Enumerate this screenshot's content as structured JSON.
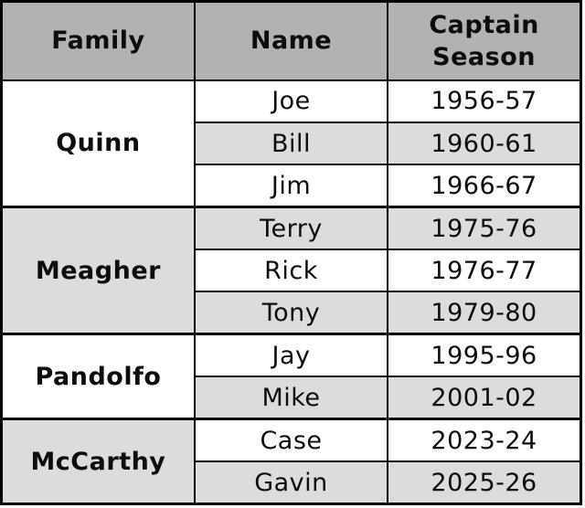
{
  "table": {
    "headers": {
      "family": "Family",
      "name": "Name",
      "season": "Captain Season"
    },
    "groups": [
      {
        "family": "Quinn",
        "members": [
          {
            "name": "Joe",
            "season": "1956-57"
          },
          {
            "name": "Bill",
            "season": "1960-61"
          },
          {
            "name": "Jim",
            "season": "1966-67"
          }
        ]
      },
      {
        "family": "Meagher",
        "members": [
          {
            "name": "Terry",
            "season": "1975-76"
          },
          {
            "name": "Rick",
            "season": "1976-77"
          },
          {
            "name": "Tony",
            "season": "1979-80"
          }
        ]
      },
      {
        "family": "Pandolfo",
        "members": [
          {
            "name": "Jay",
            "season": "1995-96"
          },
          {
            "name": "Mike",
            "season": "2001-02"
          }
        ]
      },
      {
        "family": "McCarthy",
        "members": [
          {
            "name": "Case",
            "season": "2023-24"
          },
          {
            "name": "Gavin",
            "season": "2025-26"
          }
        ]
      }
    ]
  },
  "chart_data": {
    "type": "table",
    "columns": [
      "Family",
      "Name",
      "Captain Season"
    ],
    "rows": [
      [
        "Quinn",
        "Joe",
        "1956-57"
      ],
      [
        "Quinn",
        "Bill",
        "1960-61"
      ],
      [
        "Quinn",
        "Jim",
        "1966-67"
      ],
      [
        "Meagher",
        "Terry",
        "1975-76"
      ],
      [
        "Meagher",
        "Rick",
        "1976-77"
      ],
      [
        "Meagher",
        "Tony",
        "1979-80"
      ],
      [
        "Pandolfo",
        "Jay",
        "1995-96"
      ],
      [
        "Pandolfo",
        "Mike",
        "2001-02"
      ],
      [
        "McCarthy",
        "Case",
        "2023-24"
      ],
      [
        "McCarthy",
        "Gavin",
        "2025-26"
      ]
    ],
    "layout": {
      "family_column_rowspan": true,
      "row_striping": "alternating white / light gray",
      "header_background": "#b2b2b2"
    }
  },
  "colors": {
    "header_bg": "#b2b2b2",
    "alt_row_bg": "#dcdcdc",
    "row_bg": "#ffffff",
    "border": "#000000",
    "text": "#0d0d0d"
  }
}
